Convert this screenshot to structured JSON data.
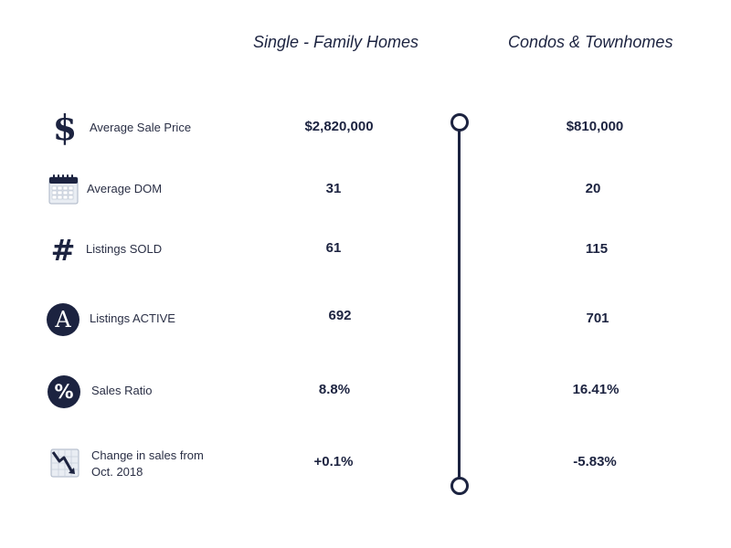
{
  "headers": {
    "single_family": "Single - Family Homes",
    "condos": "Condos & Townhomes"
  },
  "rows": [
    {
      "icon": "dollar-icon",
      "label": "Average Sale Price",
      "single_family": "$2,820,000",
      "condos": "$810,000"
    },
    {
      "icon": "calendar-icon",
      "label": "Average DOM",
      "single_family": "31",
      "condos": "20"
    },
    {
      "icon": "hashtag-icon",
      "label": "Listings SOLD",
      "single_family": "61",
      "condos": "115"
    },
    {
      "icon": "letter-a-icon",
      "label": "Listings ACTIVE",
      "single_family": "692",
      "condos": "701"
    },
    {
      "icon": "percent-icon",
      "label": "Sales Ratio",
      "single_family": "8.8%",
      "condos": "16.41%"
    },
    {
      "icon": "chart-down-icon",
      "label_line1": "Change in sales from",
      "label_line2": "Oct. 2018",
      "single_family": "+0.1%",
      "condos": "-5.83%"
    }
  ],
  "icon_glyphs": {
    "dollar": "$",
    "hashtag": "#",
    "letter_a": "A",
    "percent": "%"
  },
  "colors": {
    "navy": "#1c2340",
    "text": "#2a2f45",
    "icon_gray": "#a9b3c4"
  }
}
